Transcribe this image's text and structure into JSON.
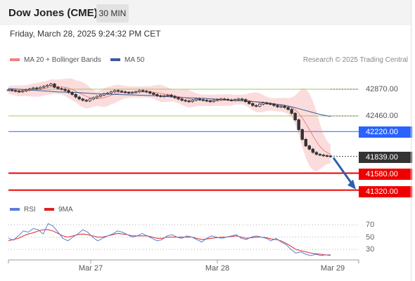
{
  "header": {
    "instrument": "Dow Jones (CME)",
    "timeframe": "30 MIN",
    "datetime": "Friday, March 28, 2025 9:24:32 PM CET"
  },
  "legend": {
    "bollinger_label": "MA 20 + Bollinger Bands",
    "ma50_label": "MA 50",
    "copyright": "Research © 2025 Trading Central",
    "rsi_label": "RSI",
    "rsi_ma_label": "9MA"
  },
  "colors": {
    "bollinger": "#f08080",
    "ma50": "#3a5a9a",
    "support_green": "#9ccc65",
    "pivot_blue": "#2962ff",
    "price_dark": "#333333",
    "target_red": "#ee0000",
    "arrow_blue": "#2f5fa8",
    "rsi": "#5b7fd6",
    "rsi_ma": "#dd2222"
  },
  "levels": [
    {
      "value": "42870.00",
      "style": "plain",
      "line": "green"
    },
    {
      "value": "42460.00",
      "style": "plain",
      "line": "green"
    },
    {
      "value": "42220.00",
      "style": "blue",
      "line": "blue"
    },
    {
      "value": "41839.00",
      "style": "dark",
      "line": "dotted"
    },
    {
      "value": "41580.00",
      "style": "red",
      "line": "red"
    },
    {
      "value": "41320.00",
      "style": "red",
      "line": "red"
    }
  ],
  "rsi_ticks": [
    "70",
    "50",
    "30"
  ],
  "x_ticks": [
    "Mar 27",
    "Mar 28",
    "Mar 29"
  ],
  "chart_data": {
    "type": "line",
    "price_series": {
      "name": "Dow Jones (CME)",
      "values": [
        42860,
        42850,
        42840,
        42830,
        42845,
        42860,
        42875,
        42890,
        42880,
        42900,
        42915,
        42930,
        42950,
        42900,
        42880,
        42870,
        42850,
        42820,
        42790,
        42750,
        42720,
        42700,
        42690,
        42720,
        42740,
        42760,
        42780,
        42800,
        42810,
        42830,
        42850,
        42840,
        42830,
        42820,
        42815,
        42820,
        42830,
        42850,
        42840,
        42830,
        42810,
        42790,
        42770,
        42760,
        42770,
        42780,
        42760,
        42740,
        42720,
        42700,
        42690,
        42680,
        42700,
        42720,
        42710,
        42700,
        42690,
        42680,
        42700,
        42710,
        42720,
        42715,
        42705,
        42700,
        42710,
        42720,
        42710,
        42680,
        42650,
        42620,
        42610,
        42640,
        42660,
        42650,
        42640,
        42620,
        42600,
        42610,
        42590,
        42560,
        42500,
        42400,
        42250,
        42100,
        42000,
        41950,
        41900,
        41870,
        41860,
        41850,
        41845,
        41839
      ]
    },
    "ma50": {
      "name": "MA 50",
      "values": [
        42880,
        42870,
        42860,
        42850,
        42840,
        42830,
        42825,
        42820,
        42810,
        42800,
        42795,
        42790,
        42785,
        42780,
        42775,
        42770,
        42760,
        42750,
        42740,
        42735,
        42730,
        42720,
        42710,
        42700,
        42690,
        42680,
        42670,
        42650,
        42630,
        42600,
        42560,
        42520,
        42480,
        42450
      ]
    },
    "levels": [
      42870,
      42460,
      42220,
      41839,
      41580,
      41320
    ],
    "rsi": {
      "name": "RSI",
      "values": [
        48,
        45,
        52,
        60,
        58,
        64,
        62,
        55,
        72,
        68,
        58,
        48,
        44,
        50,
        55,
        62,
        58,
        50,
        44,
        48,
        52,
        55,
        60,
        58,
        54,
        50,
        52,
        56,
        52,
        48,
        44,
        46,
        52,
        54,
        50,
        48,
        52,
        50,
        46,
        42,
        48,
        52,
        50,
        48,
        50,
        52,
        54,
        48,
        46,
        50,
        52,
        50,
        48,
        44,
        48,
        42,
        38,
        30,
        24,
        26,
        22,
        20,
        22,
        20,
        21,
        20
      ]
    },
    "rsi_ma": {
      "name": "9MA",
      "values": [
        44,
        46,
        48,
        52,
        55,
        57,
        60,
        62,
        62,
        60,
        56,
        52,
        50,
        52,
        54,
        55,
        54,
        52,
        50,
        50,
        52,
        54,
        56,
        55,
        54,
        52,
        52,
        52,
        52,
        50,
        48,
        48,
        50,
        50,
        50,
        50,
        50,
        50,
        48,
        46,
        47,
        48,
        49,
        50,
        50,
        51,
        52,
        50,
        48,
        49,
        50,
        50,
        49,
        47,
        46,
        44,
        40,
        35,
        30,
        28,
        26,
        24,
        23,
        22,
        21,
        21
      ]
    },
    "rsi_range": [
      0,
      100
    ],
    "x_ticks": [
      "Mar 27",
      "Mar 28",
      "Mar 29"
    ],
    "projection": {
      "from": 41839,
      "to": 41320
    }
  }
}
